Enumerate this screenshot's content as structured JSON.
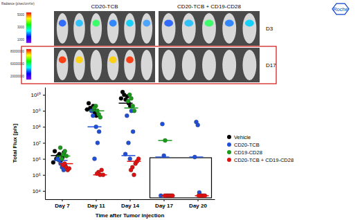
{
  "chart_data": {
    "type": "scatter",
    "xlabel": "Time after Tumor injection",
    "ylabel": "Total Flux [p/s]",
    "categories": [
      "Day 7",
      "Day 11",
      "Day 14",
      "Day 17",
      "Day 20"
    ],
    "log": "y",
    "ylim": [
      3000,
      30000000000
    ],
    "yticks": [
      {
        "value": 10000,
        "label": "10⁴"
      },
      {
        "value": 100000,
        "label": "10⁵"
      },
      {
        "value": 1000000,
        "label": "10⁶"
      },
      {
        "value": 10000000,
        "label": "10⁷"
      },
      {
        "value": 100000000,
        "label": "10⁸"
      },
      {
        "value": 1000000000,
        "label": "10⁹"
      },
      {
        "value": 10000000000,
        "label": "10¹⁰"
      }
    ],
    "legend": "right",
    "marker": "circle",
    "series": [
      {
        "name": "Vehicle",
        "color": "#000000",
        "values": [
          [
            1500000,
            2000000,
            1000000,
            800000,
            3000000,
            1200000,
            600000,
            2500000
          ],
          [
            1000000000,
            2000000000,
            1500000000,
            800000000,
            3000000000,
            500000000,
            1200000000
          ],
          [
            5000000000,
            8000000000,
            10000000000,
            3000000000,
            15000000000,
            2000000000,
            6000000000
          ],
          [],
          []
        ],
        "medians": [
          1600000,
          1200000000,
          3000000000,
          null,
          null
        ]
      },
      {
        "name": "CD20-TCB",
        "color": "#1f4fd8",
        "values": [
          [
            500000,
            300000,
            800000,
            200000,
            1000000,
            400000
          ],
          [
            1000000,
            100000000,
            500000000,
            10000000,
            1000000000,
            50000000
          ],
          [
            10000000,
            1000000,
            500000000,
            1000000000,
            2000000,
            50000000
          ],
          [
            150000000,
            1600000,
            5000
          ],
          [
            200000000,
            130000000,
            1300000,
            8000
          ]
        ],
        "medians": [
          800000,
          100000000,
          1600000,
          1300000,
          1300000
        ]
      },
      {
        "name": "CD19-CD28",
        "color": "#1a9a1a",
        "values": [
          [
            2000000,
            3000000,
            1000000,
            1500000,
            5000000
          ],
          [
            1000000000,
            600000000,
            2000000000,
            400000000,
            1500000000
          ],
          [
            6000000000,
            2000000000,
            10000000000,
            1000000000,
            4000000000
          ],
          [
            14000000
          ],
          []
        ],
        "medians": [
          1500000,
          1000000000,
          1500000000,
          14000000,
          null
        ]
      },
      {
        "name": "CD20-TCB + CD19-CD28",
        "color": "#e01010",
        "values": [
          [
            300000,
            200000,
            500000,
            250000,
            400000
          ],
          [
            100000,
            200000,
            150000,
            100000,
            120000
          ],
          [
            100000,
            500000,
            300000,
            700000,
            200000,
            1000000
          ],
          [
            5000,
            5000,
            5000,
            5000,
            5000,
            5000
          ],
          [
            5000,
            5000,
            5000,
            5000,
            5000
          ]
        ],
        "medians": [
          500000,
          100000,
          700000,
          5000,
          5000
        ]
      }
    ]
  },
  "image_panel": {
    "groups": [
      "CD20-TCB",
      "CD20-TCB + CD19-CD28"
    ],
    "rows": [
      "D3",
      "D17"
    ],
    "colorbar_title": "Radiance (p/sec/cm²/sr)",
    "colorbar_labels": [
      [
        5000,
        3000,
        1000
      ],
      [
        80000000,
        60000000,
        20000000
      ]
    ]
  },
  "logo": "Roche"
}
